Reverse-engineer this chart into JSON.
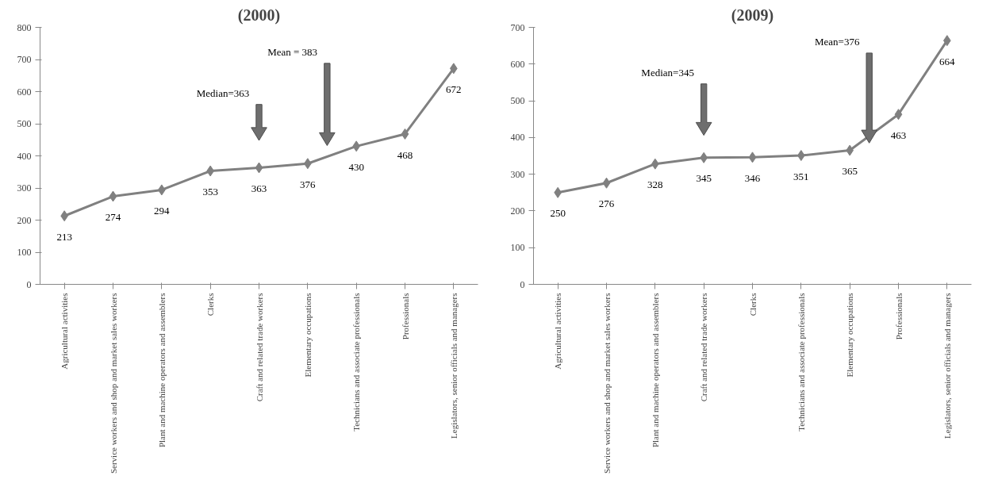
{
  "chart_data": [
    {
      "type": "line",
      "title": "(2000)",
      "categories": [
        "Agricultural activities",
        "Service workers and shop and market sales workers",
        "Plant and machine operators and assemblers",
        "Clerks",
        "Craft and related trade workers",
        "Elementary occupations",
        "Technicians and associate professionals",
        "Professionals",
        "Legislators, senior officials and managers"
      ],
      "series": [
        {
          "color": "#808080",
          "values": [
            213,
            274,
            294,
            353,
            363,
            376,
            430,
            468,
            672
          ]
        }
      ],
      "ylim": [
        0,
        800
      ],
      "yticks": [
        0,
        100,
        200,
        300,
        400,
        500,
        600,
        700,
        800
      ],
      "grid": false,
      "marker": "diamond",
      "line_style": "solid",
      "data_labels": true,
      "annotations": [
        "Median=363",
        "Mean = 383"
      ]
    },
    {
      "type": "line",
      "title": "(2009)",
      "categories": [
        "Agricultural activities",
        "Service workers and shop and market sales workers",
        "Plant and machine operators and assemblers",
        "Craft and related trade workers",
        "Clerks",
        "Technicians and associate professionals",
        "Elementary occupations",
        "Professionals",
        "Legislators, senior officials and managers"
      ],
      "series": [
        {
          "color": "#808080",
          "values": [
            250,
            276,
            328,
            345,
            346,
            351,
            365,
            463,
            664
          ]
        }
      ],
      "ylim": [
        0,
        700
      ],
      "yticks": [
        0,
        100,
        200,
        300,
        400,
        500,
        600,
        700
      ],
      "grid": false,
      "marker": "diamond",
      "line_style": "solid",
      "data_labels": true,
      "annotations": [
        "Median=345",
        "Mean=376"
      ]
    }
  ]
}
